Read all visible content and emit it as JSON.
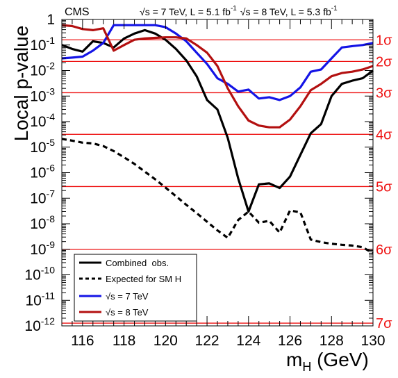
{
  "chart_data": {
    "type": "line",
    "header_left": "CMS",
    "header_right": {
      "seg1": {
        "sqrt": "√",
        "s": "s = 7 TeV, L = 5.1 fb",
        "sup": "-1"
      },
      "seg2": {
        "sqrt": "√",
        "s": "s = 8 TeV, L = 5.3 fb",
        "sup": "-1"
      }
    },
    "ylabel": "Local p-value",
    "xlabel": {
      "main": "m",
      "sub": "H",
      "unit": " (GeV)"
    },
    "x_range": [
      115,
      130
    ],
    "y_range": [
      1e-12,
      1
    ],
    "y_scale": "log",
    "x_ticks": [
      116,
      118,
      120,
      122,
      124,
      126,
      128,
      130
    ],
    "y_ticks": [
      {
        "value": 1,
        "base": "1",
        "exp": ""
      },
      {
        "value": 0.1,
        "base": "10",
        "exp": "-1"
      },
      {
        "value": 0.01,
        "base": "10",
        "exp": "-2"
      },
      {
        "value": 0.001,
        "base": "10",
        "exp": "-3"
      },
      {
        "value": 0.0001,
        "base": "10",
        "exp": "-4"
      },
      {
        "value": 1e-05,
        "base": "10",
        "exp": "-5"
      },
      {
        "value": 1e-06,
        "base": "10",
        "exp": "-6"
      },
      {
        "value": 1e-07,
        "base": "10",
        "exp": "-7"
      },
      {
        "value": 1e-08,
        "base": "10",
        "exp": "-8"
      },
      {
        "value": 1e-09,
        "base": "10",
        "exp": "-9"
      },
      {
        "value": 1e-10,
        "base": "10",
        "exp": "-10"
      },
      {
        "value": 1e-11,
        "base": "10",
        "exp": "-11"
      },
      {
        "value": 1e-12,
        "base": "10",
        "exp": "-12"
      }
    ],
    "sigma_lines": [
      {
        "label": "1σ",
        "p": 0.159
      },
      {
        "label": "2σ",
        "p": 0.0228
      },
      {
        "label": "3σ",
        "p": 0.00135
      },
      {
        "label": "4σ",
        "p": 3.17e-05
      },
      {
        "label": "5σ",
        "p": 2.87e-07
      },
      {
        "label": "6σ",
        "p": 9.9e-10
      },
      {
        "label": "7σ",
        "p": 1.28e-12
      }
    ],
    "series": [
      {
        "name": "Combined  obs.",
        "color": "#000000",
        "dash": "solid",
        "x": [
          115,
          115.5,
          116,
          116.5,
          117,
          117.5,
          118,
          118.5,
          119,
          119.5,
          120,
          120.5,
          121,
          121.5,
          122,
          122.5,
          123,
          123.5,
          124,
          124.5,
          125,
          125.5,
          126,
          126.5,
          127,
          127.5,
          128,
          128.5,
          129,
          129.5,
          130
        ],
        "y": [
          0.1,
          0.07,
          0.055,
          0.14,
          0.12,
          0.08,
          0.18,
          0.28,
          0.38,
          0.28,
          0.16,
          0.07,
          0.025,
          0.006,
          0.0007,
          0.0003,
          2.3e-05,
          6e-07,
          3e-08,
          3.5e-07,
          3.8e-07,
          2.5e-07,
          7e-07,
          5e-06,
          3.5e-05,
          8e-05,
          0.001,
          0.003,
          0.004,
          0.005,
          0.01
        ]
      },
      {
        "name": "Expected for SM H",
        "color": "#000000",
        "dash": "dashed",
        "x": [
          115,
          115.5,
          116,
          116.5,
          117,
          117.5,
          118,
          118.5,
          119,
          119.5,
          120,
          120.5,
          121,
          121.5,
          122,
          122.5,
          123,
          123.5,
          124,
          124.5,
          125,
          125.5,
          126,
          126.5,
          127,
          127.5,
          128,
          128.5,
          129,
          129.5,
          130
        ],
        "y": [
          2.1e-05,
          1.8e-05,
          1.5e-05,
          1.4e-05,
          1.1e-05,
          7e-06,
          4e-06,
          2.2e-06,
          1.1e-06,
          5.5e-07,
          2.6e-07,
          1.2e-07,
          5.5e-08,
          2.6e-08,
          1.2e-08,
          5.5e-09,
          2.8e-09,
          1.4e-08,
          3e-08,
          1.1e-08,
          1.3e-08,
          4.5e-09,
          3.3e-08,
          2.8e-08,
          2.4e-09,
          1.9e-09,
          1.65e-09,
          1.5e-09,
          1.4e-09,
          1.2e-09,
          7e-10
        ]
      },
      {
        "name": "s = 7 TeV",
        "sqrt": "√",
        "color": "#1414e6",
        "dash": "solid",
        "x": [
          115,
          115.5,
          116,
          116.5,
          117,
          117.5,
          118,
          118.5,
          119,
          119.5,
          120,
          120.5,
          121,
          121.5,
          122,
          122.5,
          123,
          123.5,
          124,
          124.5,
          125,
          125.5,
          126,
          126.5,
          127,
          127.5,
          128,
          128.5,
          129,
          129.5,
          130
        ],
        "y": [
          0.03,
          0.032,
          0.035,
          0.06,
          0.12,
          0.6,
          0.6,
          0.6,
          0.6,
          0.6,
          0.5,
          0.28,
          0.14,
          0.05,
          0.018,
          0.005,
          0.003,
          0.0015,
          0.0018,
          0.0008,
          0.0009,
          0.0007,
          0.001,
          0.0022,
          0.009,
          0.011,
          0.03,
          0.08,
          0.09,
          0.1,
          0.12
        ]
      },
      {
        "name": "s = 8 TeV",
        "sqrt": "√",
        "color": "#b31010",
        "dash": "solid",
        "x": [
          115,
          115.5,
          116,
          116.5,
          117,
          117.5,
          118,
          118.5,
          119,
          119.5,
          120,
          120.5,
          121,
          121.5,
          122,
          122.5,
          123,
          123.5,
          124,
          124.5,
          125,
          125.5,
          126,
          126.5,
          127,
          127.5,
          128,
          128.5,
          129,
          129.5,
          130
        ],
        "y": [
          0.6,
          0.55,
          0.42,
          0.38,
          0.45,
          0.06,
          0.1,
          0.16,
          0.18,
          0.19,
          0.2,
          0.2,
          0.18,
          0.1,
          0.05,
          0.015,
          0.002,
          0.0004,
          0.00011,
          7e-05,
          6e-05,
          6e-05,
          0.00012,
          0.0004,
          0.0017,
          0.003,
          0.006,
          0.008,
          0.009,
          0.011,
          0.015
        ]
      }
    ],
    "legend_position": "bottom-left"
  }
}
